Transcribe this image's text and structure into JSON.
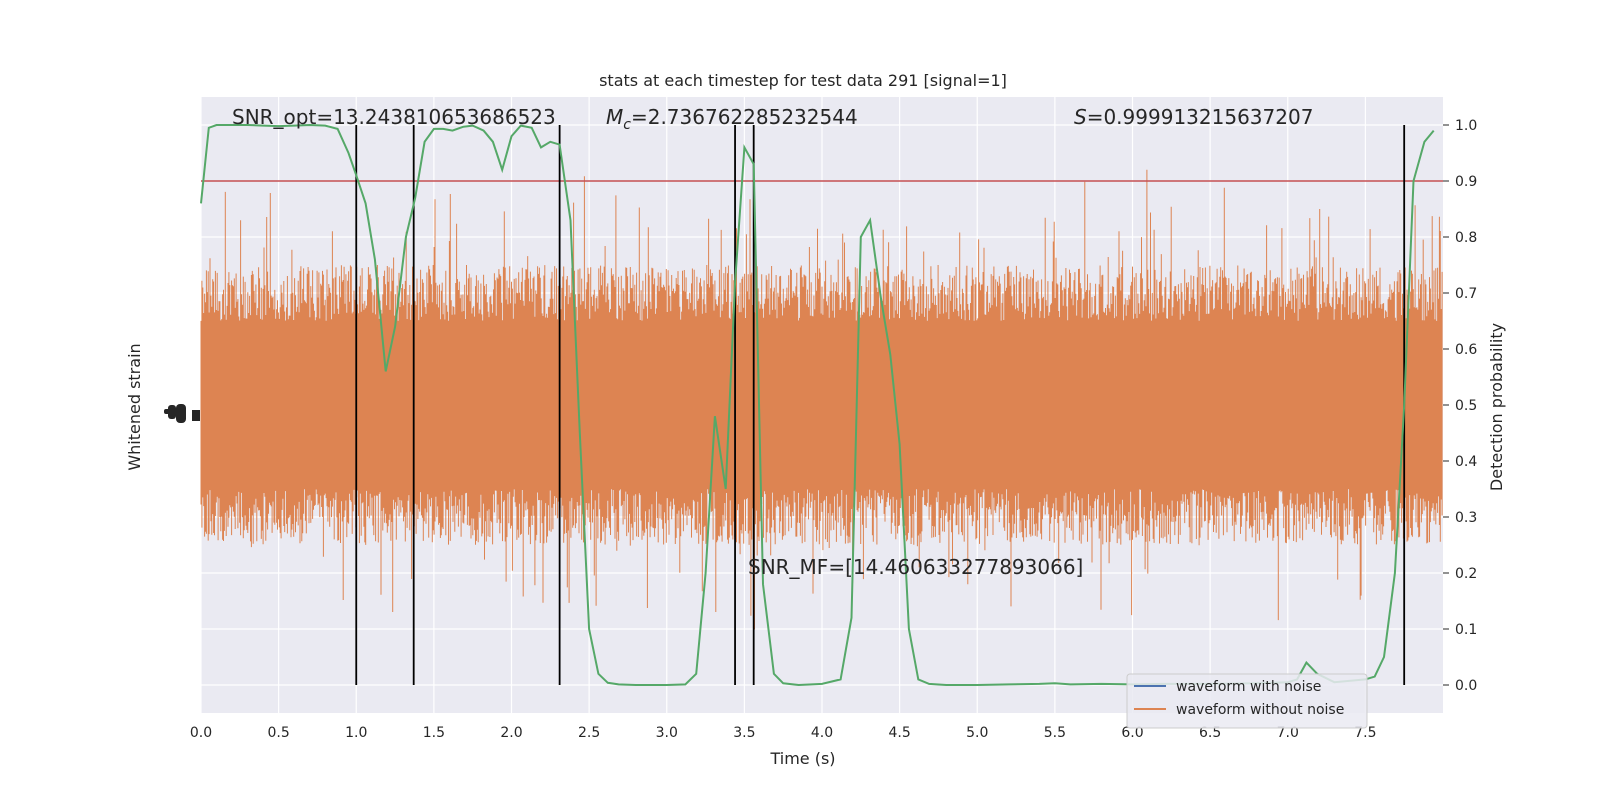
{
  "chart_data": {
    "type": "line",
    "title": "stats at each timestep for test data 291 [signal=1]",
    "xlabel": "Time (s)",
    "ylabel_left": "Whitened strain",
    "ylabel_right": "Detection probability",
    "xlim": [
      0.0,
      8.0
    ],
    "ylim_right": [
      -0.05,
      1.05
    ],
    "x_ticks": [
      "0.0",
      "0.5",
      "1.0",
      "1.5",
      "2.0",
      "2.5",
      "3.0",
      "3.5",
      "4.0",
      "4.5",
      "5.0",
      "5.5",
      "6.0",
      "6.5",
      "7.0",
      "7.5"
    ],
    "y_ticks_right": [
      "0.0",
      "0.1",
      "0.2",
      "0.3",
      "0.4",
      "0.5",
      "0.6",
      "0.7",
      "0.8",
      "0.9",
      "1.0"
    ],
    "grid": true,
    "legend_position": "lower-right",
    "series": [
      {
        "name": "waveform with noise",
        "color": "#4c72b0",
        "kind": "line"
      },
      {
        "name": "waveform without noise",
        "color": "#dd8452",
        "kind": "dense-noise-band"
      }
    ],
    "detection_probability": {
      "color": "#55a868",
      "x": [
        0.0,
        0.05,
        0.1,
        0.2,
        0.3,
        0.4,
        0.5,
        0.6,
        0.7,
        0.8,
        0.88,
        0.95,
        1.0,
        1.06,
        1.12,
        1.19,
        1.25,
        1.32,
        1.38,
        1.44,
        1.5,
        1.56,
        1.62,
        1.69,
        1.75,
        1.82,
        1.88,
        1.94,
        2.0,
        2.06,
        2.13,
        2.19,
        2.25,
        2.31,
        2.38,
        2.44,
        2.5,
        2.56,
        2.62,
        2.69,
        2.8,
        3.0,
        3.12,
        3.19,
        3.25,
        3.31,
        3.38,
        3.44,
        3.5,
        3.56,
        3.62,
        3.69,
        3.75,
        3.85,
        4.0,
        4.12,
        4.19,
        4.25,
        4.31,
        4.38,
        4.44,
        4.5,
        4.56,
        4.62,
        4.69,
        4.8,
        5.0,
        5.2,
        5.4,
        5.5,
        5.6,
        5.8,
        6.0,
        6.2,
        6.5,
        6.8,
        7.0,
        7.06,
        7.12,
        7.19,
        7.3,
        7.5,
        7.56,
        7.62,
        7.69,
        7.75,
        7.81,
        7.88,
        7.94
      ],
      "y": [
        0.86,
        0.995,
        1.0,
        1.0,
        1.0,
        0.999,
        0.998,
        0.999,
        1.0,
        0.999,
        0.993,
        0.95,
        0.91,
        0.86,
        0.76,
        0.56,
        0.64,
        0.8,
        0.87,
        0.97,
        0.993,
        0.993,
        0.99,
        0.997,
        0.999,
        0.99,
        0.97,
        0.92,
        0.98,
        0.999,
        0.995,
        0.96,
        0.97,
        0.965,
        0.83,
        0.45,
        0.1,
        0.02,
        0.004,
        0.001,
        0.0,
        0.0,
        0.001,
        0.02,
        0.2,
        0.48,
        0.35,
        0.72,
        0.96,
        0.93,
        0.18,
        0.02,
        0.003,
        0.0,
        0.002,
        0.01,
        0.12,
        0.8,
        0.83,
        0.69,
        0.59,
        0.43,
        0.1,
        0.01,
        0.002,
        0.0,
        0.0,
        0.001,
        0.002,
        0.003,
        0.001,
        0.002,
        0.001,
        0.002,
        0.002,
        0.003,
        0.005,
        0.01,
        0.04,
        0.02,
        0.005,
        0.01,
        0.015,
        0.05,
        0.2,
        0.5,
        0.9,
        0.97,
        0.99
      ]
    },
    "threshold": {
      "value": 0.9,
      "color": "#c44e52"
    },
    "event_markers_x": [
      1.0,
      1.37,
      2.31,
      3.44,
      3.56,
      7.75
    ],
    "annotations": [
      {
        "text": "SNR_opt=13.243810653686523"
      },
      {
        "prefix": "M",
        "sub": "c",
        "suffix": "=2.736762285232544"
      },
      {
        "prefix": "S",
        "suffix": "=0.999913215637207"
      },
      {
        "text": "SNR_MF=[14.460633277893066]"
      }
    ]
  }
}
